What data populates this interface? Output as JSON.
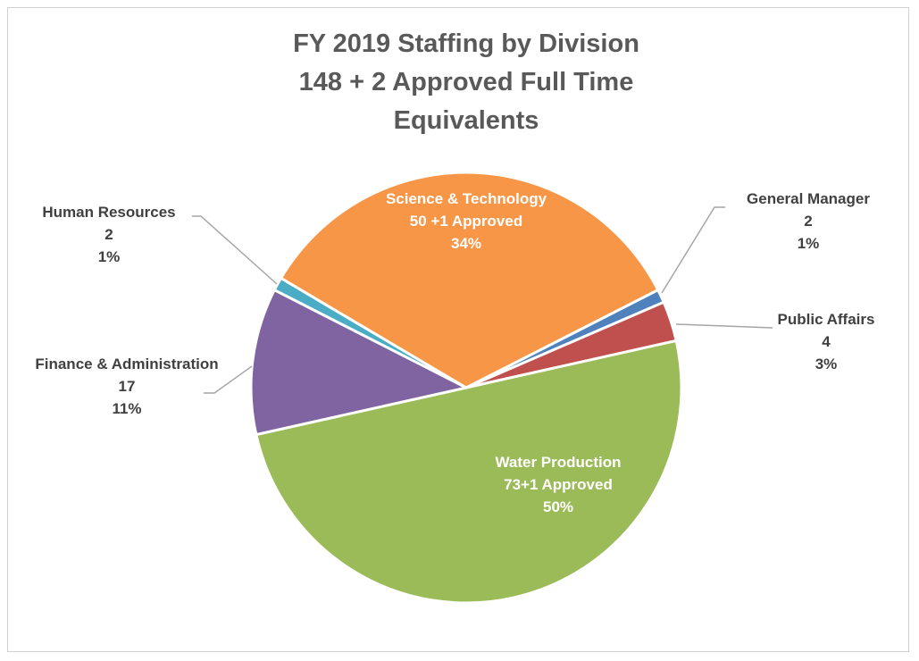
{
  "chart_data": {
    "type": "pie",
    "title": "FY 2019 Staffing by Division",
    "subtitle": "148 + 2 Approved Full Time Equivalents",
    "categories": [
      "General Manager",
      "Public Affairs",
      "Water Production",
      "Finance & Administration",
      "Human Resources",
      "Science & Technology"
    ],
    "count_labels": [
      "2",
      "4",
      "73+1 Approved",
      "17",
      "2",
      "50 +1 Approved"
    ],
    "values": [
      1,
      3,
      50,
      11,
      1,
      34
    ],
    "value_labels": [
      "1%",
      "3%",
      "50%",
      "11%",
      "1%",
      "34%"
    ],
    "colors": [
      "#4f81bd",
      "#c0504d",
      "#9bbb59",
      "#8064a2",
      "#4bacc6",
      "#f79646"
    ]
  }
}
